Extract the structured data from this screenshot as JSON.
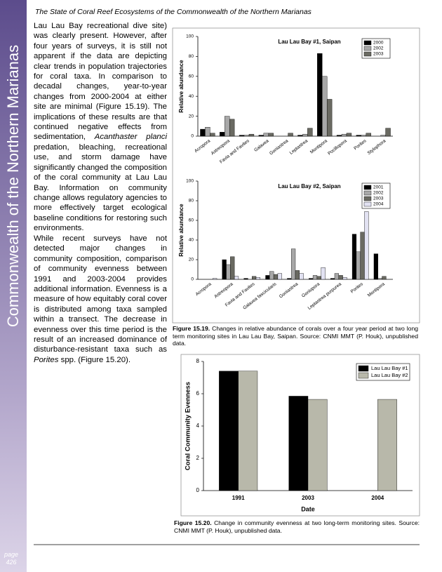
{
  "header": "The State of Coral Reef Ecosystems of the Commonwealth of the Northern Marianas",
  "sidebar": "Commonwealth of the Northern Marianas",
  "body": [
    [
      "Lau Lau Bay recreational dive site) was clearly present.  However, after four years of surveys, it is still not apparent if the data are depicting clear trends in population trajectories for coral taxa.  In comparison to decadal changes, year-to-year changes from 2000-2004 at either site are minimal (Figure 15.19).  The implications of these results are that continued negative effects from sedimentation, ",
      "Acanthaster planci",
      " predation, bleaching, recreational use, and storm damage have significantly changed the composition of the coral community at Lau Lau Bay.   Information on community change allows regulatory agencies to more effectively target ecological baseline conditions for restoring such environments."
    ],
    [
      "While recent surveys have not detected major changes in community composition, comparison of community evenness between 1991 and 2003-2004 provides additional information.  Evenness is a measure of how equitably coral cover is distributed among taxa sampled within a transect.  The decrease in evenness over this time period is the result of an increased dominance of disturbance-resistant taxa such as ",
      "Porites",
      " spp. (Figure 15.20)."
    ]
  ],
  "figures": [
    {
      "label": "Figure 15.19.",
      "text": "Changes in relative abundance of corals over a four year period at two long term monitoring sites in Lau Lau Bay, Saipan.  Source:  CNMI MMT (P. Houk), unpublished data."
    },
    {
      "label": "Figure 15.20.",
      "text": "Change in community evenness at two long-term monitoring sites. Source:  CNMI MMT (P. Houk), unpublished data."
    }
  ],
  "page": {
    "label": "page",
    "number": "426"
  },
  "chart_data": [
    {
      "type": "bar",
      "title": "Lau Lau Bay #1, Saipan",
      "ylabel": "Relative abundance",
      "categories": [
        "Acropora",
        "Astreopora",
        "Favia and Favites",
        "Galaxea",
        "Goniastrea",
        "Leptastrea",
        "Montipora",
        "Pocillopora",
        "Porites",
        "Stylophora"
      ],
      "series": [
        {
          "name": "2000",
          "color": "#000000",
          "values": [
            7,
            4,
            1,
            1,
            0,
            1,
            83,
            1,
            1,
            0
          ]
        },
        {
          "name": "2002",
          "color": "#a8a8a8",
          "values": [
            9,
            20,
            1,
            3,
            0,
            2,
            60,
            2,
            1,
            1
          ]
        },
        {
          "name": "2003",
          "color": "#6a6a62",
          "values": [
            3,
            17,
            2,
            3,
            3,
            8,
            37,
            3,
            3,
            8
          ]
        }
      ],
      "ylim": [
        0,
        100
      ],
      "yticks": [
        0,
        20,
        40,
        60,
        80,
        100
      ],
      "legend": "upper right"
    },
    {
      "type": "bar",
      "title": "Lau Lau Bay #2, Saipan",
      "ylabel": "Relative abundance",
      "categories": [
        "Acropora",
        "Astreopora",
        "Favia and Favites",
        "Galaxea fascicularis",
        "Goniastrea",
        "Goniopora",
        "Leptastrea purpurea",
        "Porites",
        "Montipora"
      ],
      "series": [
        {
          "name": "2001",
          "color": "#000000",
          "values": [
            0,
            20,
            1,
            4,
            1,
            1,
            1,
            46,
            26
          ]
        },
        {
          "name": "2002",
          "color": "#a8a8a8",
          "values": [
            0,
            15,
            0,
            8,
            31,
            4,
            6,
            28,
            1
          ]
        },
        {
          "name": "2003",
          "color": "#6a6a62",
          "values": [
            0,
            23,
            3,
            5,
            9,
            3,
            4,
            48,
            3
          ]
        },
        {
          "name": "2004",
          "color": "#e2e2f2",
          "values": [
            1,
            3,
            2,
            6,
            6,
            12,
            2,
            69,
            0
          ]
        }
      ],
      "ylim": [
        0,
        100
      ],
      "yticks": [
        0,
        20,
        40,
        60,
        80,
        100
      ],
      "legend": "upper right"
    },
    {
      "type": "bar",
      "ylabel": "Coral Community Evenness",
      "xlabel": "Date",
      "categories": [
        "1991",
        "2003",
        "2004"
      ],
      "series": [
        {
          "name": "Lau Lau Bay #1",
          "color": "#000000",
          "values": [
            7.4,
            5.85,
            null
          ]
        },
        {
          "name": "Lau Lau Bay #2",
          "color": "#b8b8aa",
          "values": [
            7.4,
            5.65,
            5.65
          ]
        }
      ],
      "ylim": [
        0,
        8
      ],
      "yticks": [
        0,
        2,
        4,
        6,
        8
      ],
      "legend": "upper right"
    }
  ]
}
